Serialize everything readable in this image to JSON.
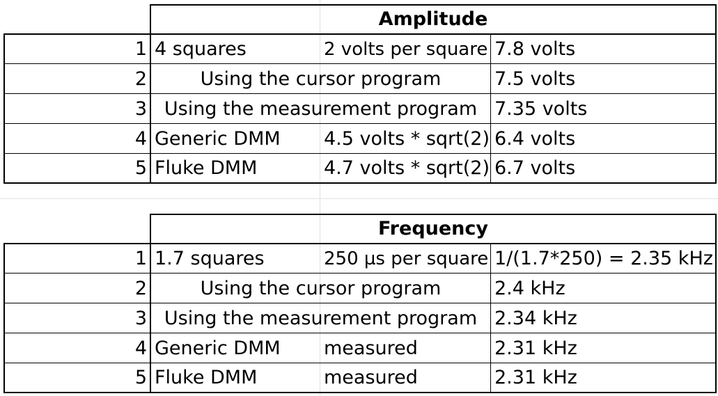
{
  "tables": [
    {
      "header": "Amplitude",
      "rows": [
        {
          "n": "1",
          "method": "4 squares",
          "detail": "2 volts per square",
          "result": "7.8 volts"
        },
        {
          "n": "2",
          "method_span": "Using the cursor program",
          "result": "7.5 volts"
        },
        {
          "n": "3",
          "method_span": "Using the measurement program",
          "result": "7.35 volts"
        },
        {
          "n": "4",
          "method": "Generic DMM",
          "detail": "4.5 volts * sqrt(2)",
          "result": "6.4 volts"
        },
        {
          "n": "5",
          "method": "Fluke DMM",
          "detail": "4.7 volts * sqrt(2)",
          "result": "6.7 volts"
        }
      ]
    },
    {
      "header": "Frequency",
      "rows": [
        {
          "n": "1",
          "method": "1.7 squares",
          "detail": "250 µs per square",
          "result": "1/(1.7*250) = 2.35 kHz"
        },
        {
          "n": "2",
          "method_span": "Using the cursor program",
          "result": "2.4 kHz"
        },
        {
          "n": "3",
          "method_span": "Using the measurement program",
          "result": "2.34 kHz"
        },
        {
          "n": "4",
          "method": "Generic DMM",
          "detail": "measured",
          "result": "2.31 kHz"
        },
        {
          "n": "5",
          "method": "Fluke DMM",
          "detail": "measured",
          "result": "2.31 kHz"
        }
      ]
    }
  ]
}
